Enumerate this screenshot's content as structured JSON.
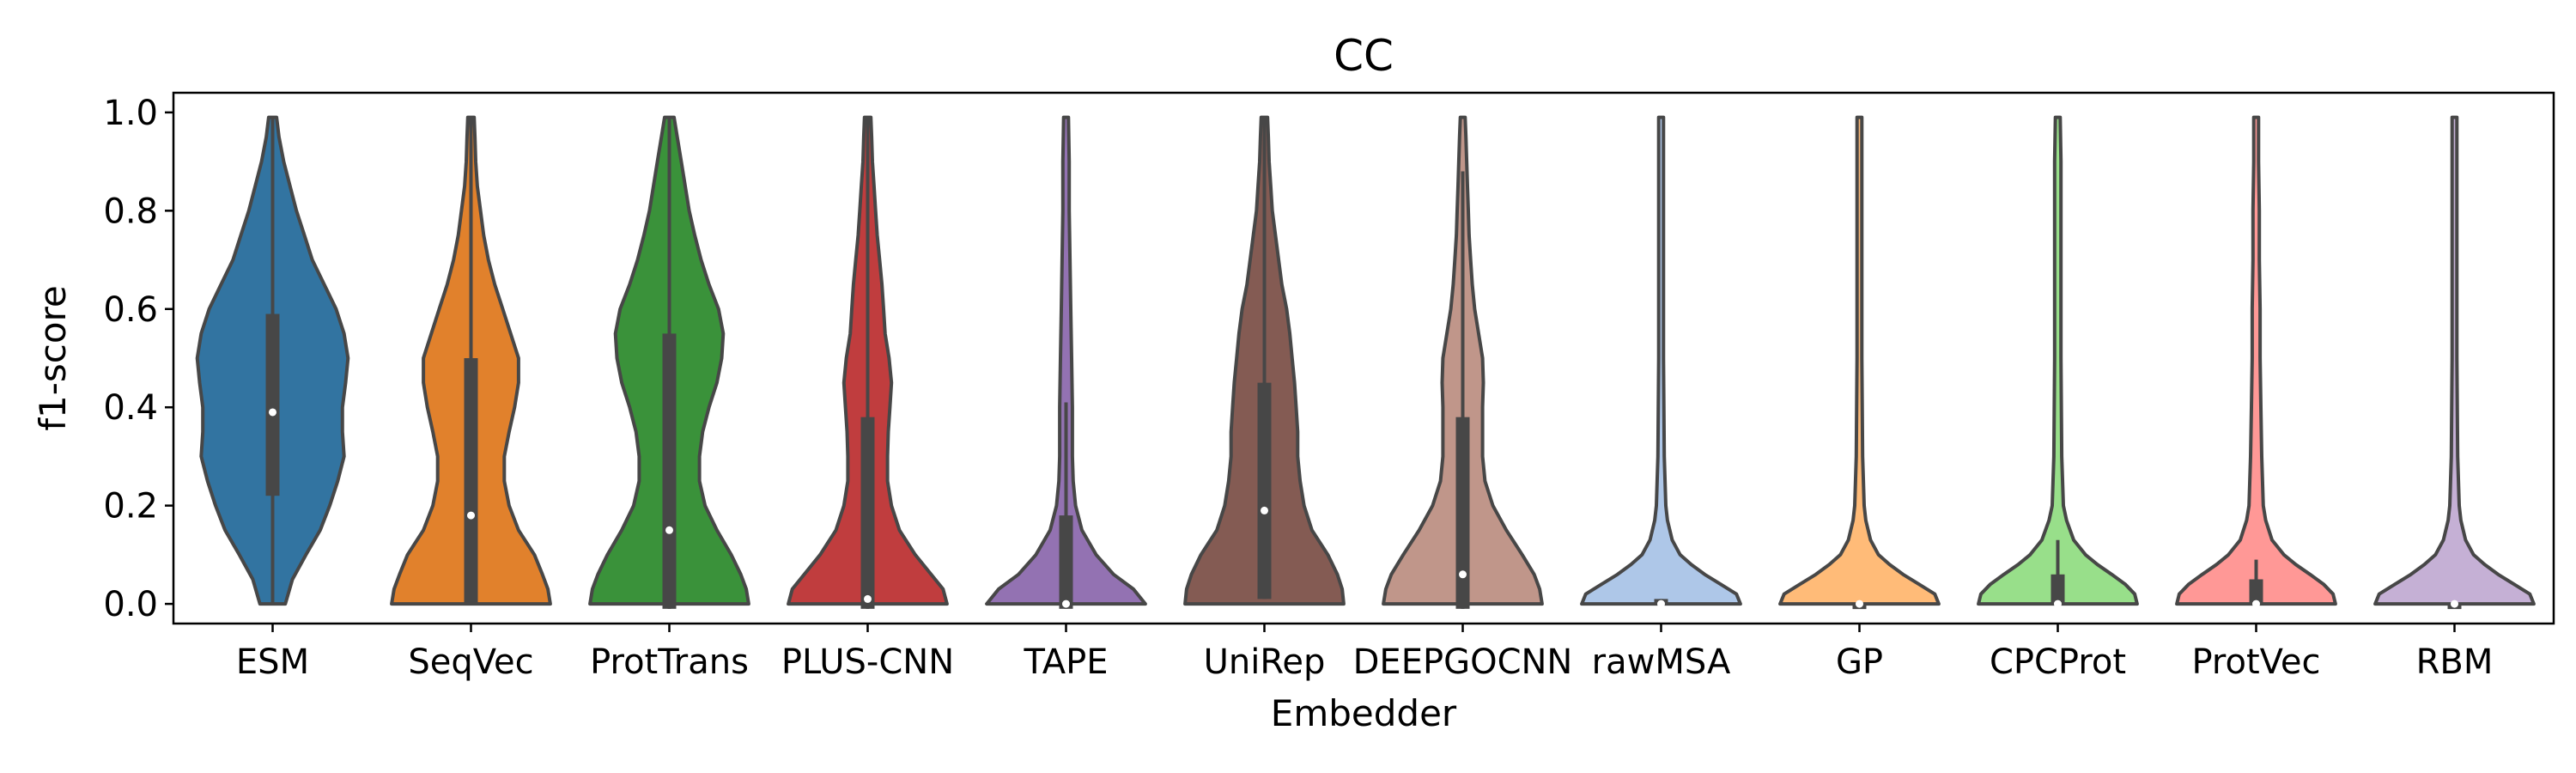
{
  "chart_data": {
    "type": "violin",
    "title": "CC",
    "xlabel": "Embedder",
    "ylabel": "f1-score",
    "ylim": [
      -0.04,
      1.04
    ],
    "yticks": [
      "0.0",
      "0.2",
      "0.4",
      "0.6",
      "0.8",
      "1.0"
    ],
    "grid": false,
    "categories": [
      "ESM",
      "SeqVec",
      "ProtTrans",
      "PLUS-CNN",
      "TAPE",
      "UniRep",
      "DEEPGOCNN",
      "rawMSA",
      "GP",
      "CPCProt",
      "ProtVec",
      "RBM"
    ],
    "series": [
      {
        "category": "ESM",
        "color": "#3274a1",
        "q1": 0.22,
        "median": 0.39,
        "q3": 0.59,
        "whisker_low": 0.0,
        "whisker_high": 0.99,
        "density": [
          [
            0.0,
            0.16
          ],
          [
            0.05,
            0.25
          ],
          [
            0.1,
            0.42
          ],
          [
            0.15,
            0.6
          ],
          [
            0.2,
            0.72
          ],
          [
            0.25,
            0.82
          ],
          [
            0.3,
            0.9
          ],
          [
            0.35,
            0.88
          ],
          [
            0.4,
            0.88
          ],
          [
            0.45,
            0.92
          ],
          [
            0.5,
            0.95
          ],
          [
            0.55,
            0.9
          ],
          [
            0.6,
            0.8
          ],
          [
            0.65,
            0.65
          ],
          [
            0.7,
            0.5
          ],
          [
            0.75,
            0.4
          ],
          [
            0.8,
            0.3
          ],
          [
            0.85,
            0.22
          ],
          [
            0.9,
            0.14
          ],
          [
            0.95,
            0.08
          ],
          [
            0.99,
            0.05
          ]
        ]
      },
      {
        "category": "SeqVec",
        "color": "#e1812c",
        "q1": 0.0,
        "median": 0.18,
        "q3": 0.5,
        "whisker_low": 0.0,
        "whisker_high": 0.99,
        "density": [
          [
            0.0,
            1.0
          ],
          [
            0.03,
            0.97
          ],
          [
            0.06,
            0.9
          ],
          [
            0.1,
            0.8
          ],
          [
            0.15,
            0.6
          ],
          [
            0.2,
            0.48
          ],
          [
            0.25,
            0.42
          ],
          [
            0.3,
            0.42
          ],
          [
            0.35,
            0.48
          ],
          [
            0.4,
            0.55
          ],
          [
            0.45,
            0.6
          ],
          [
            0.5,
            0.6
          ],
          [
            0.55,
            0.5
          ],
          [
            0.6,
            0.4
          ],
          [
            0.65,
            0.3
          ],
          [
            0.7,
            0.22
          ],
          [
            0.75,
            0.16
          ],
          [
            0.8,
            0.12
          ],
          [
            0.85,
            0.08
          ],
          [
            0.9,
            0.06
          ],
          [
            0.95,
            0.05
          ],
          [
            0.99,
            0.04
          ]
        ]
      },
      {
        "category": "ProtTrans",
        "color": "#3a923a",
        "q1": -0.01,
        "median": 0.15,
        "q3": 0.55,
        "whisker_low": -0.01,
        "whisker_high": 0.99,
        "density": [
          [
            0.0,
            1.0
          ],
          [
            0.03,
            0.97
          ],
          [
            0.06,
            0.9
          ],
          [
            0.1,
            0.78
          ],
          [
            0.15,
            0.6
          ],
          [
            0.2,
            0.45
          ],
          [
            0.25,
            0.38
          ],
          [
            0.3,
            0.38
          ],
          [
            0.35,
            0.42
          ],
          [
            0.4,
            0.5
          ],
          [
            0.45,
            0.6
          ],
          [
            0.5,
            0.66
          ],
          [
            0.55,
            0.68
          ],
          [
            0.6,
            0.62
          ],
          [
            0.65,
            0.5
          ],
          [
            0.7,
            0.4
          ],
          [
            0.75,
            0.32
          ],
          [
            0.8,
            0.25
          ],
          [
            0.85,
            0.2
          ],
          [
            0.9,
            0.15
          ],
          [
            0.95,
            0.1
          ],
          [
            0.99,
            0.06
          ]
        ]
      },
      {
        "category": "PLUS-CNN",
        "color": "#c03d3e",
        "q1": -0.01,
        "median": 0.01,
        "q3": 0.38,
        "whisker_low": -0.01,
        "whisker_high": 0.99,
        "density": [
          [
            0.0,
            1.0
          ],
          [
            0.03,
            0.95
          ],
          [
            0.06,
            0.8
          ],
          [
            0.1,
            0.6
          ],
          [
            0.15,
            0.4
          ],
          [
            0.2,
            0.3
          ],
          [
            0.25,
            0.25
          ],
          [
            0.3,
            0.25
          ],
          [
            0.35,
            0.26
          ],
          [
            0.4,
            0.28
          ],
          [
            0.45,
            0.3
          ],
          [
            0.5,
            0.27
          ],
          [
            0.55,
            0.22
          ],
          [
            0.6,
            0.2
          ],
          [
            0.65,
            0.18
          ],
          [
            0.7,
            0.15
          ],
          [
            0.75,
            0.12
          ],
          [
            0.8,
            0.1
          ],
          [
            0.85,
            0.08
          ],
          [
            0.9,
            0.06
          ],
          [
            0.95,
            0.05
          ],
          [
            0.99,
            0.04
          ]
        ]
      },
      {
        "category": "TAPE",
        "color": "#9372b2",
        "q1": -0.01,
        "median": 0.0,
        "q3": 0.18,
        "whisker_low": -0.01,
        "whisker_high": 0.41,
        "density": [
          [
            0.0,
            1.0
          ],
          [
            0.03,
            0.85
          ],
          [
            0.06,
            0.6
          ],
          [
            0.1,
            0.38
          ],
          [
            0.15,
            0.2
          ],
          [
            0.2,
            0.12
          ],
          [
            0.25,
            0.09
          ],
          [
            0.3,
            0.08
          ],
          [
            0.4,
            0.08
          ],
          [
            0.5,
            0.07
          ],
          [
            0.6,
            0.06
          ],
          [
            0.7,
            0.05
          ],
          [
            0.8,
            0.04
          ],
          [
            0.9,
            0.04
          ],
          [
            0.99,
            0.03
          ]
        ]
      },
      {
        "category": "UniRep",
        "color": "#845b53",
        "q1": 0.01,
        "median": 0.19,
        "q3": 0.45,
        "whisker_low": 0.01,
        "whisker_high": 0.99,
        "density": [
          [
            0.0,
            1.0
          ],
          [
            0.03,
            0.98
          ],
          [
            0.06,
            0.92
          ],
          [
            0.1,
            0.8
          ],
          [
            0.15,
            0.6
          ],
          [
            0.2,
            0.5
          ],
          [
            0.25,
            0.45
          ],
          [
            0.3,
            0.42
          ],
          [
            0.35,
            0.42
          ],
          [
            0.4,
            0.4
          ],
          [
            0.45,
            0.38
          ],
          [
            0.5,
            0.35
          ],
          [
            0.55,
            0.32
          ],
          [
            0.6,
            0.28
          ],
          [
            0.65,
            0.22
          ],
          [
            0.7,
            0.18
          ],
          [
            0.75,
            0.14
          ],
          [
            0.8,
            0.1
          ],
          [
            0.85,
            0.08
          ],
          [
            0.9,
            0.06
          ],
          [
            0.95,
            0.05
          ],
          [
            0.99,
            0.04
          ]
        ]
      },
      {
        "category": "DEEPGOCNN",
        "color": "#c0968a",
        "q1": -0.01,
        "median": 0.06,
        "q3": 0.38,
        "whisker_low": -0.01,
        "whisker_high": 0.88,
        "density": [
          [
            0.0,
            1.0
          ],
          [
            0.03,
            0.97
          ],
          [
            0.06,
            0.9
          ],
          [
            0.1,
            0.75
          ],
          [
            0.15,
            0.55
          ],
          [
            0.2,
            0.38
          ],
          [
            0.25,
            0.28
          ],
          [
            0.3,
            0.25
          ],
          [
            0.35,
            0.25
          ],
          [
            0.4,
            0.25
          ],
          [
            0.45,
            0.26
          ],
          [
            0.5,
            0.25
          ],
          [
            0.55,
            0.2
          ],
          [
            0.6,
            0.15
          ],
          [
            0.65,
            0.12
          ],
          [
            0.7,
            0.1
          ],
          [
            0.75,
            0.08
          ],
          [
            0.8,
            0.07
          ],
          [
            0.85,
            0.06
          ],
          [
            0.9,
            0.05
          ],
          [
            0.95,
            0.04
          ],
          [
            0.99,
            0.03
          ]
        ]
      },
      {
        "category": "rawMSA",
        "color": "#aec7e8",
        "q1": 0.0,
        "median": 0.0,
        "q3": 0.01,
        "whisker_low": 0.0,
        "whisker_high": 0.01,
        "density": [
          [
            0.0,
            1.0
          ],
          [
            0.02,
            0.95
          ],
          [
            0.04,
            0.75
          ],
          [
            0.06,
            0.55
          ],
          [
            0.08,
            0.38
          ],
          [
            0.1,
            0.24
          ],
          [
            0.13,
            0.14
          ],
          [
            0.17,
            0.08
          ],
          [
            0.2,
            0.06
          ],
          [
            0.3,
            0.04
          ],
          [
            0.5,
            0.03
          ],
          [
            0.7,
            0.03
          ],
          [
            0.9,
            0.03
          ],
          [
            0.99,
            0.03
          ]
        ]
      },
      {
        "category": "GP",
        "color": "#ffbb78",
        "q1": 0.0,
        "median": 0.0,
        "q3": 0.0,
        "whisker_low": 0.0,
        "whisker_high": 0.0,
        "density": [
          [
            0.0,
            1.0
          ],
          [
            0.02,
            0.95
          ],
          [
            0.04,
            0.75
          ],
          [
            0.06,
            0.55
          ],
          [
            0.08,
            0.38
          ],
          [
            0.1,
            0.24
          ],
          [
            0.13,
            0.14
          ],
          [
            0.17,
            0.08
          ],
          [
            0.2,
            0.06
          ],
          [
            0.3,
            0.04
          ],
          [
            0.5,
            0.03
          ],
          [
            0.7,
            0.03
          ],
          [
            0.9,
            0.03
          ],
          [
            0.99,
            0.03
          ]
        ]
      },
      {
        "category": "CPCProt",
        "color": "#98df8a",
        "q1": 0.0,
        "median": 0.0,
        "q3": 0.06,
        "whisker_low": 0.0,
        "whisker_high": 0.13,
        "density": [
          [
            0.0,
            1.0
          ],
          [
            0.02,
            0.97
          ],
          [
            0.04,
            0.85
          ],
          [
            0.06,
            0.68
          ],
          [
            0.08,
            0.5
          ],
          [
            0.1,
            0.35
          ],
          [
            0.13,
            0.2
          ],
          [
            0.17,
            0.11
          ],
          [
            0.2,
            0.07
          ],
          [
            0.3,
            0.05
          ],
          [
            0.5,
            0.04
          ],
          [
            0.7,
            0.04
          ],
          [
            0.9,
            0.04
          ],
          [
            0.99,
            0.03
          ]
        ]
      },
      {
        "category": "ProtVec",
        "color": "#ff9896",
        "q1": 0.0,
        "median": 0.0,
        "q3": 0.05,
        "whisker_low": 0.0,
        "whisker_high": 0.09,
        "density": [
          [
            0.0,
            1.0
          ],
          [
            0.02,
            0.97
          ],
          [
            0.04,
            0.85
          ],
          [
            0.06,
            0.68
          ],
          [
            0.08,
            0.5
          ],
          [
            0.1,
            0.35
          ],
          [
            0.13,
            0.2
          ],
          [
            0.17,
            0.12
          ],
          [
            0.2,
            0.09
          ],
          [
            0.3,
            0.07
          ],
          [
            0.4,
            0.06
          ],
          [
            0.5,
            0.05
          ],
          [
            0.6,
            0.05
          ],
          [
            0.7,
            0.04
          ],
          [
            0.8,
            0.04
          ],
          [
            0.9,
            0.03
          ],
          [
            0.99,
            0.03
          ]
        ]
      },
      {
        "category": "RBM",
        "color": "#c5b0d5",
        "q1": 0.0,
        "median": 0.0,
        "q3": 0.0,
        "whisker_low": 0.0,
        "whisker_high": 0.0,
        "density": [
          [
            0.0,
            1.0
          ],
          [
            0.02,
            0.95
          ],
          [
            0.04,
            0.75
          ],
          [
            0.06,
            0.55
          ],
          [
            0.08,
            0.38
          ],
          [
            0.1,
            0.24
          ],
          [
            0.13,
            0.14
          ],
          [
            0.17,
            0.08
          ],
          [
            0.2,
            0.06
          ],
          [
            0.3,
            0.04
          ],
          [
            0.5,
            0.03
          ],
          [
            0.7,
            0.03
          ],
          [
            0.9,
            0.03
          ],
          [
            0.99,
            0.03
          ]
        ]
      }
    ]
  }
}
